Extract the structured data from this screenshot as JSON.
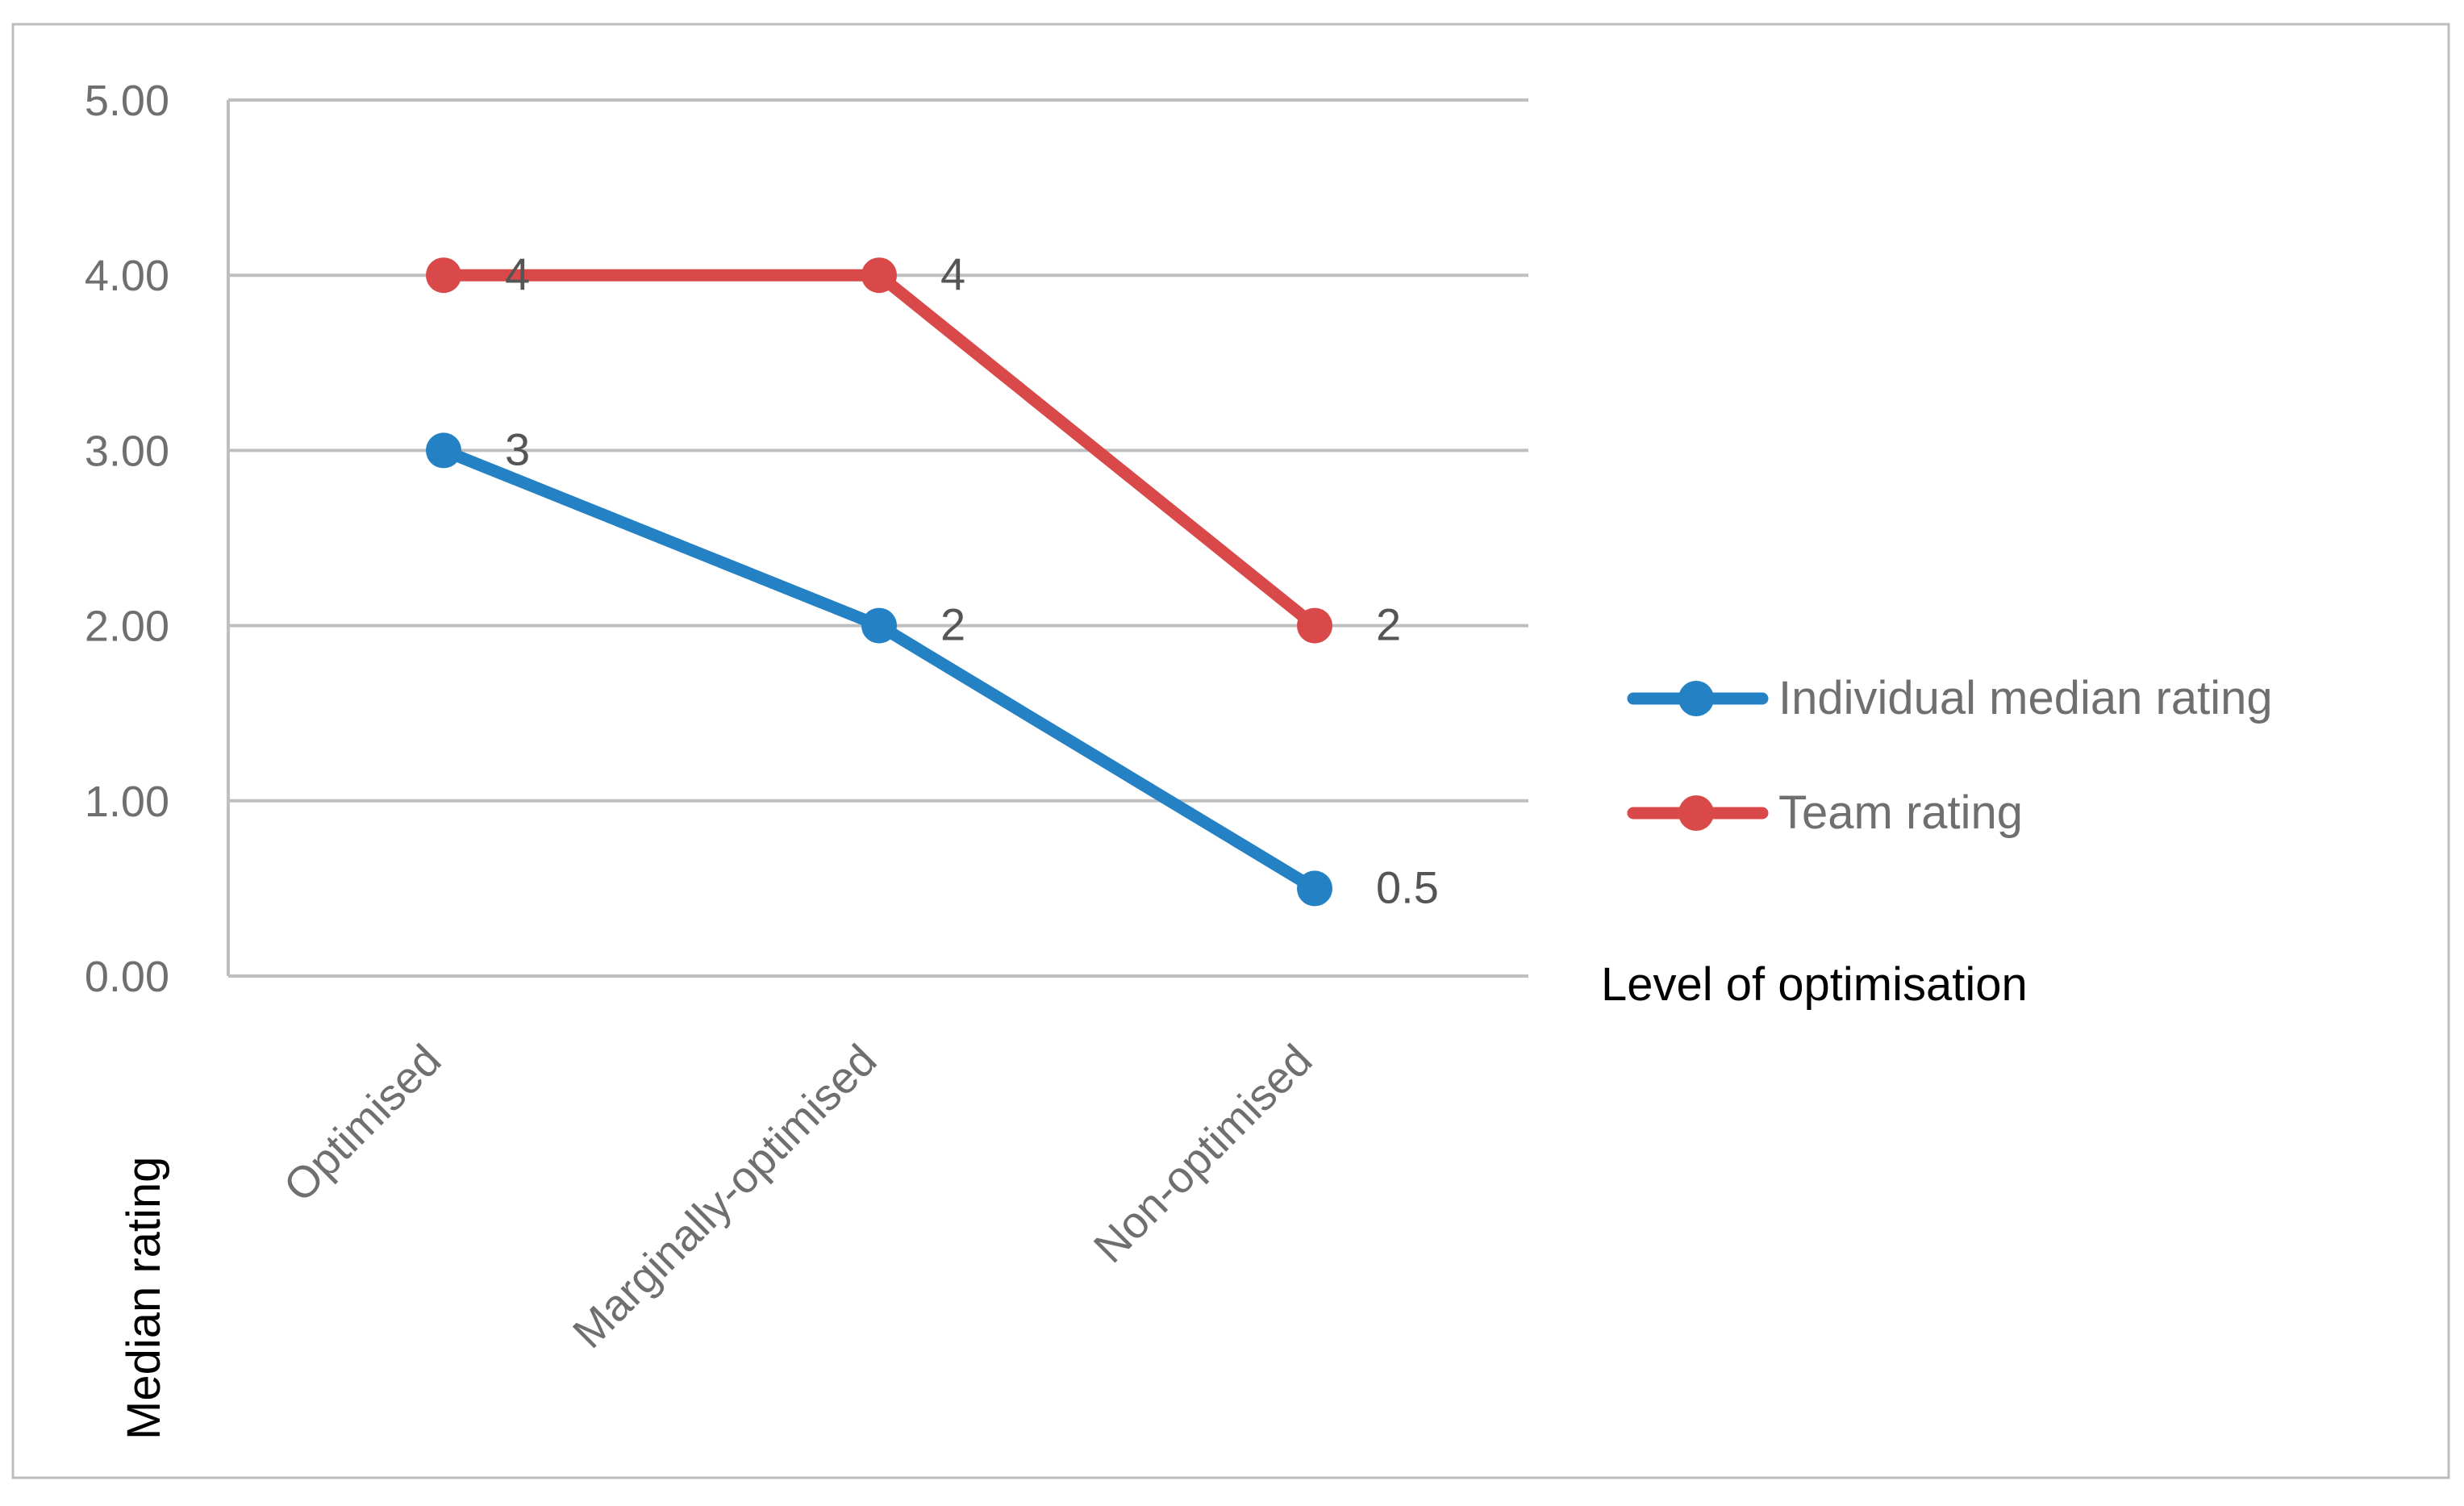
{
  "colors": {
    "frame": "#bdbdbd",
    "grid": "#bfbfbf",
    "tick_text": "#6f6f6f",
    "axis_title_text": "#000000",
    "individual": "#2481c4",
    "team": "#d9494a"
  },
  "chart_data": {
    "type": "line",
    "title": "",
    "xlabel": "Level of optimisation",
    "ylabel": "Median rating",
    "categories": [
      "Optimised",
      "Marginally-optimised",
      "Non-optimised"
    ],
    "ylim": [
      0,
      5
    ],
    "yticks": [
      0,
      1,
      2,
      3,
      4,
      5
    ],
    "ytick_labels": [
      "0.00",
      "1.00",
      "2.00",
      "3.00",
      "4.00",
      "5.00"
    ],
    "grid": true,
    "legend_position": "right",
    "series": [
      {
        "name": "Individual median rating",
        "color_key": "individual",
        "values": [
          3,
          2,
          0.5
        ],
        "data_labels": [
          "3",
          "2",
          "0.5"
        ]
      },
      {
        "name": "Team rating",
        "color_key": "team",
        "values": [
          4,
          4,
          2
        ],
        "data_labels": [
          "4",
          "4",
          "2"
        ]
      }
    ]
  }
}
